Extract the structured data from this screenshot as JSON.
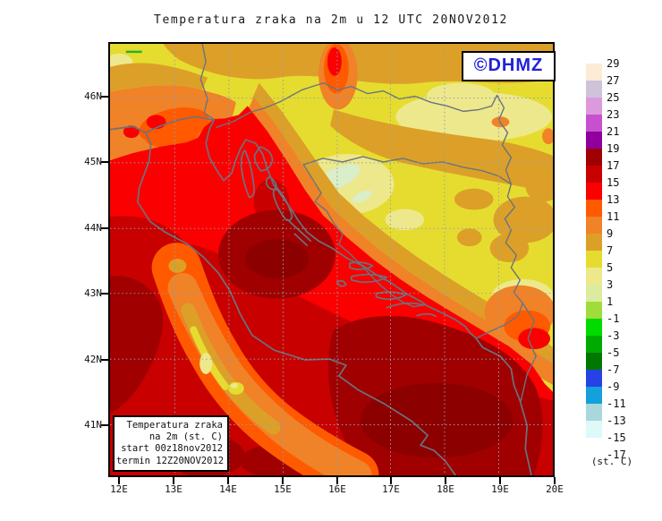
{
  "title": "Temperatura zraka na 2m u 12 UTC 20NOV2012",
  "watermark": {
    "text": "©DHMZ",
    "color": "#2121D7"
  },
  "axes": {
    "x_labels": [
      "12E",
      "13E",
      "14E",
      "15E",
      "16E",
      "17E",
      "18E",
      "19E",
      "20E"
    ],
    "y_labels": [
      "46N",
      "45N",
      "44N",
      "43N",
      "42N",
      "41N"
    ]
  },
  "colorbar": {
    "units": "(st. C)",
    "tick_labels": [
      "29",
      "27",
      "25",
      "23",
      "21",
      "19",
      "17",
      "15",
      "13",
      "11",
      "9",
      "7",
      "5",
      "3",
      "1",
      "-1",
      "-3",
      "-5",
      "-7",
      "-9",
      "-11",
      "-13",
      "-15",
      "-17"
    ],
    "swatch_colors_top_to_bottom": [
      "#FCEBD5",
      "#CFC3DC",
      "#DC9ADC",
      "#C750CE",
      "#8F009E",
      "#A00000",
      "#C80000",
      "#FA0000",
      "#FF5A00",
      "#F08228",
      "#DCA028",
      "#E6DC30",
      "#EEE88C",
      "#DCEC9E",
      "#A0DC3C",
      "#00DC00",
      "#00AA00",
      "#007800",
      "#2841E6",
      "#14A0DC",
      "#A8D8DC",
      "#DFF8F8",
      "#FFFFFF"
    ]
  },
  "info_box": {
    "lines": [
      "Temperatura zraka",
      "na 2m (st. C)",
      "start 00z18nov2012",
      "termin 12Z20NOV2012"
    ]
  }
}
